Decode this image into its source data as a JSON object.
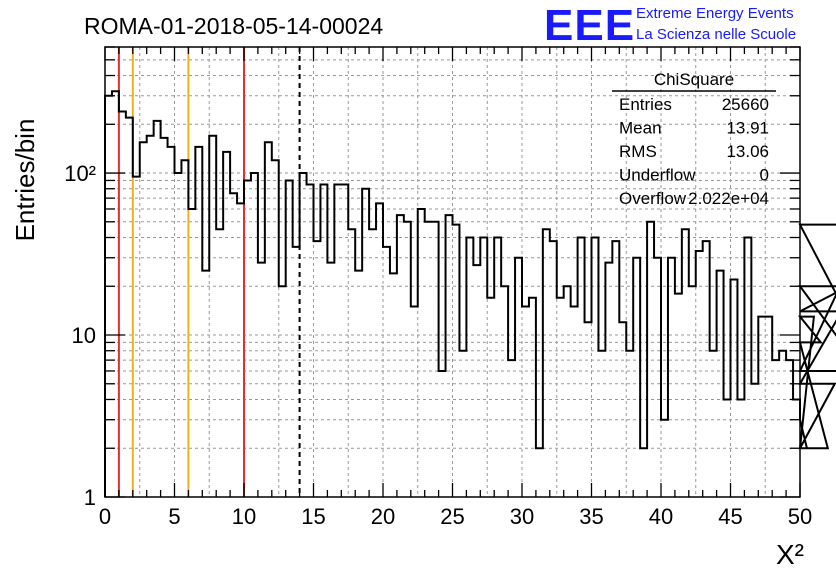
{
  "title": "ROMA-01-2018-05-14-00024",
  "logo": {
    "mark": "EEE",
    "line1": "Extreme Energy Events",
    "line2": "La Scienza nelle Scuole",
    "color": "#1a1aff"
  },
  "stats": {
    "header": "ChiSquare",
    "rows": [
      {
        "label": "Entries",
        "value": "25660"
      },
      {
        "label": "Mean",
        "value": "13.91"
      },
      {
        "label": "RMS",
        "value": "13.06"
      },
      {
        "label": "Underflow",
        "value": "0"
      },
      {
        "label": "Overflow",
        "value": "2.022e+04"
      }
    ]
  },
  "chart_data": {
    "type": "histogram",
    "xlabel": "X²",
    "ylabel": "Entries/bin",
    "xlim": [
      0,
      50
    ],
    "ylim": [
      1,
      600
    ],
    "yscale": "log",
    "grid": true,
    "xticks": [
      "0",
      "5",
      "10",
      "15",
      "20",
      "25",
      "30",
      "35",
      "40",
      "45",
      "50"
    ],
    "yticks": [
      {
        "v": 1,
        "label": "1"
      },
      {
        "v": 10,
        "label": "10"
      },
      {
        "v": 100,
        "label": "10²"
      }
    ],
    "bin_width": 0.5,
    "values": [
      300,
      320,
      240,
      220,
      95,
      155,
      170,
      210,
      165,
      145,
      100,
      120,
      60,
      145,
      25,
      170,
      45,
      135,
      75,
      65,
      90,
      100,
      28,
      155,
      120,
      20,
      90,
      35,
      100,
      85,
      38,
      85,
      28,
      85,
      85,
      45,
      25,
      80,
      45,
      65,
      35,
      24,
      55,
      50,
      15,
      60,
      50,
      50,
      6,
      55,
      48,
      8,
      40,
      27,
      40,
      17,
      40,
      20,
      7,
      30,
      15,
      17,
      2,
      45,
      38,
      17,
      20,
      15,
      40,
      12,
      40,
      8,
      28,
      38,
      12,
      8,
      30,
      2,
      50,
      30,
      3,
      30,
      18,
      45,
      20,
      33,
      38,
      8,
      25,
      4,
      22,
      4,
      40,
      5,
      13,
      13,
      7,
      8,
      7,
      4,
      3,
      2,
      13,
      9,
      2,
      5,
      14,
      20,
      20,
      6,
      48,
      6
    ],
    "lines": [
      {
        "x": 1,
        "color": "#e03030",
        "style": "solid"
      },
      {
        "x": 2,
        "color": "#f0b020",
        "style": "solid"
      },
      {
        "x": 6,
        "color": "#f0b020",
        "style": "solid"
      },
      {
        "x": 10,
        "color": "#e03030",
        "style": "solid"
      },
      {
        "x": 14,
        "color": "#000000",
        "style": "dashed"
      }
    ]
  }
}
